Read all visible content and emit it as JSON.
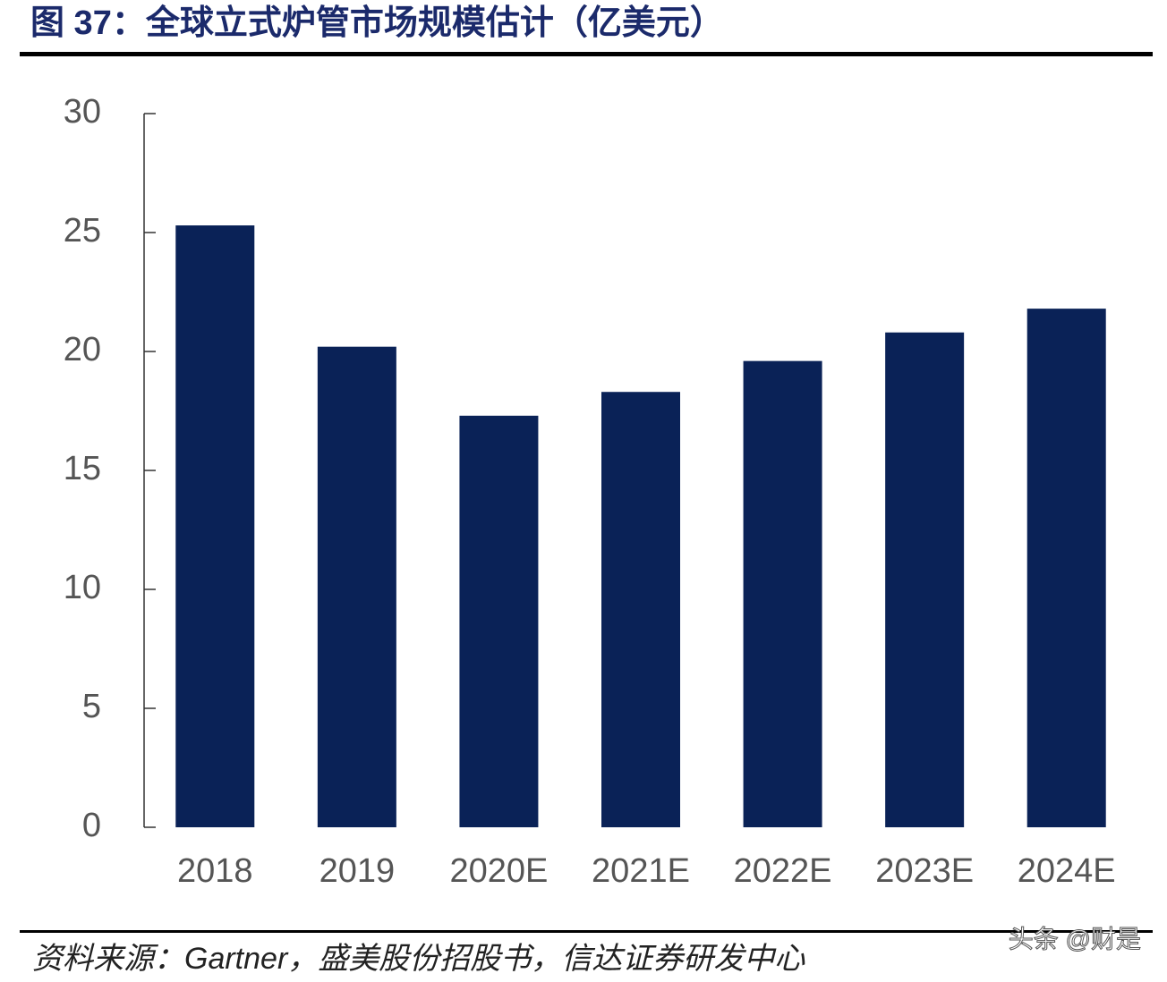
{
  "chart_data": {
    "type": "bar",
    "title": "图 37：全球立式炉管市场规模估计（亿美元）",
    "categories": [
      "2018",
      "2019",
      "2020E",
      "2021E",
      "2022E",
      "2023E",
      "2024E"
    ],
    "values": [
      25.3,
      20.2,
      17.3,
      18.3,
      19.6,
      20.8,
      21.8
    ],
    "color": "#0a2257",
    "ylim": [
      0,
      30
    ],
    "yticks": [
      0,
      5,
      10,
      15,
      20,
      25,
      30
    ],
    "grid": false,
    "source": "资料来源：Gartner，盛美股份招股书，信达证券研发中心",
    "watermark": "头条 @财是"
  }
}
